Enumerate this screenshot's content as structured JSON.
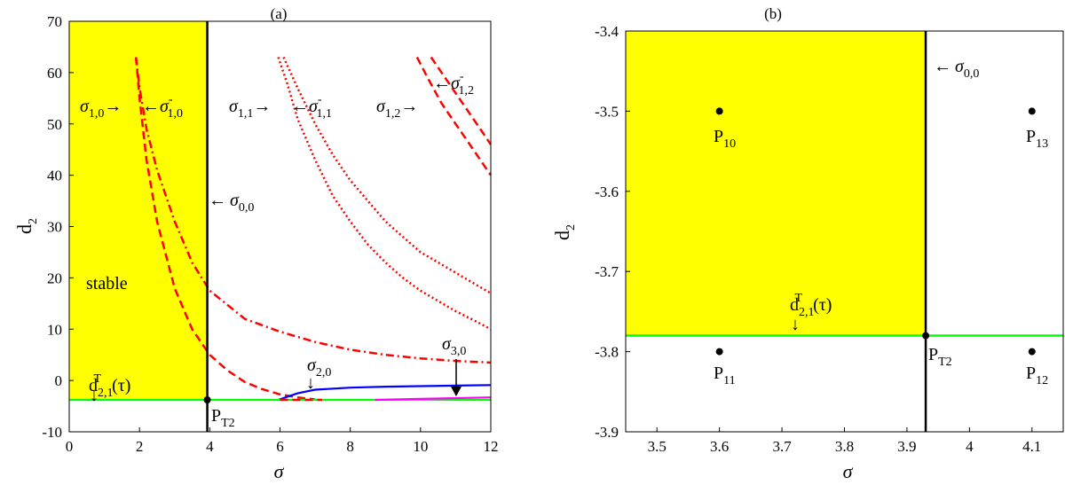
{
  "chart_data": [
    {
      "type": "line",
      "panel_label": "(a)",
      "xlabel": "σ",
      "ylabel": "d2",
      "xlim": [
        0,
        12
      ],
      "ylim": [
        -10,
        70
      ],
      "xticks": [
        "0",
        "2",
        "4",
        "6",
        "8",
        "10",
        "12"
      ],
      "yticks": [
        "-10",
        "0",
        "10",
        "20",
        "30",
        "40",
        "50",
        "60",
        "70"
      ],
      "stable_region": {
        "x": [
          0,
          3.93
        ],
        "y": [
          -3.78,
          70
        ],
        "color": "#ffff00",
        "label": "stable"
      },
      "vertical_line": {
        "x": 3.93,
        "label": "σ0,0",
        "color": "#000000"
      },
      "series": [
        {
          "style": "dash",
          "color": "#ff0000",
          "x": [
            1.9,
            2.0,
            2.2,
            2.5,
            3.0,
            3.5,
            4.0,
            4.5,
            5.0,
            5.5,
            6.0,
            6.5,
            7.0
          ],
          "y": [
            63,
            55,
            43,
            31,
            18,
            10,
            5,
            2,
            -0.3,
            -1.7,
            -2.7,
            -3.3,
            -3.7
          ]
        },
        {
          "style": "dashdot",
          "color": "#ff0000",
          "x": [
            1.9,
            2.0,
            2.2,
            2.5,
            3.0,
            3.5,
            4.0,
            5.0,
            6.0,
            7.0,
            8.0,
            9.0,
            10.0,
            11.0,
            12.0
          ],
          "y": [
            63,
            57,
            49,
            41,
            31,
            23,
            17.5,
            12,
            9.5,
            7.5,
            6,
            5,
            4.3,
            3.8,
            3.5
          ]
        },
        {
          "style": "dot",
          "color": "#ff0000",
          "x": [
            5.95,
            6.2,
            6.5,
            7.0,
            7.5,
            8.0,
            8.5,
            9.0,
            9.5,
            10.0,
            10.5,
            11.0,
            11.5,
            12.0
          ],
          "y": [
            63,
            58,
            51,
            43,
            36,
            31,
            26.5,
            23,
            20,
            17.5,
            15.5,
            13.5,
            11.8,
            10
          ]
        },
        {
          "style": "dot",
          "color": "#ff0000",
          "x": [
            6.1,
            6.5,
            7.0,
            7.5,
            8.0,
            8.5,
            9.0,
            9.5,
            10.0,
            10.5,
            11.0,
            11.5,
            12.0
          ],
          "y": [
            63,
            57,
            50,
            44,
            39,
            35,
            31,
            28,
            25,
            23,
            21,
            19,
            17
          ]
        },
        {
          "style": "dash",
          "color": "#ff0000",
          "x": [
            9.9,
            10.2,
            10.6,
            11.0,
            11.4,
            11.8,
            12.0
          ],
          "y": [
            63,
            59,
            54,
            50,
            46,
            42,
            40
          ]
        },
        {
          "style": "dash",
          "color": "#ff0000",
          "x": [
            10.3,
            10.6,
            11.0,
            11.4,
            11.8,
            12.0
          ],
          "y": [
            63,
            60,
            56,
            52,
            48,
            46
          ]
        },
        {
          "style": "solid",
          "color": "#0000ff",
          "x": [
            5.95,
            6.5,
            7.0,
            8.0,
            9.0,
            10.0,
            11.0,
            12.0
          ],
          "y": [
            -3.78,
            -2.5,
            -1.8,
            -1.4,
            -1.2,
            -1.1,
            -1.0,
            -0.9
          ]
        },
        {
          "style": "solid",
          "color": "#00ff00",
          "x": [
            0,
            12
          ],
          "y": [
            -3.78,
            -3.78
          ]
        },
        {
          "style": "solid",
          "color": "#ff00ff",
          "x": [
            8.7,
            12.0
          ],
          "y": [
            -3.78,
            -3.3
          ]
        },
        {
          "style": "dash",
          "color": "#ff0000",
          "x": [
            6.0,
            7.2
          ],
          "y": [
            -3.78,
            -3.78
          ]
        }
      ],
      "points": [
        {
          "label": "PT2",
          "x": 3.93,
          "y": -3.78
        }
      ],
      "annotations": [
        "stable",
        "σ0,0",
        "σ1,0",
        "σ-1,0",
        "σ1,1",
        "σ-1,1",
        "σ1,2",
        "σ-1,2",
        "σ2,0",
        "σ3,0",
        "dT2,1(τ)",
        "PT2"
      ]
    },
    {
      "type": "scatter",
      "panel_label": "(b)",
      "xlabel": "σ",
      "ylabel": "d2",
      "xlim": [
        3.45,
        4.15
      ],
      "ylim": [
        -3.9,
        -3.4
      ],
      "xticks": [
        "3.5",
        "3.6",
        "3.7",
        "3.8",
        "3.9",
        "4",
        "4.1"
      ],
      "yticks": [
        "-3.9",
        "-3.8",
        "-3.7",
        "-3.6",
        "-3.5",
        "-3.4"
      ],
      "stable_region": {
        "x": [
          3.45,
          3.93
        ],
        "y": [
          -3.78,
          -3.4
        ],
        "color": "#ffff00"
      },
      "vertical_line": {
        "x": 3.93,
        "label": "σ0,0"
      },
      "hline": {
        "y": -3.78,
        "color": "#00ff00",
        "label": "dT2,1(τ)"
      },
      "points": [
        {
          "label": "P10",
          "x": 3.6,
          "y": -3.5
        },
        {
          "label": "P11",
          "x": 3.6,
          "y": -3.8
        },
        {
          "label": "P12",
          "x": 4.1,
          "y": -3.8
        },
        {
          "label": "P13",
          "x": 4.1,
          "y": -3.5
        },
        {
          "label": "PT2",
          "x": 3.93,
          "y": -3.78
        }
      ]
    }
  ],
  "text": {
    "a_label": "(a)",
    "b_label": "(b)",
    "sigma": "σ",
    "d": "d",
    "d_sub": "2",
    "stable": "stable",
    "s1": "σ",
    "arrow_r": "→",
    "arrow_l": "←",
    "arrow_d": "↓",
    "sub_00": "0,0",
    "sub_10": "1,0",
    "sub_11": "1,1",
    "sub_12": "1,2",
    "sub_20": "2,0",
    "sub_30": "3,0",
    "sub_21": "2,1",
    "minus": "-",
    "T": "T",
    "tau": "(τ)",
    "P": "P",
    "p10": "10",
    "p11": "11",
    "p12": "12",
    "p13": "13",
    "pt2": "T2"
  }
}
